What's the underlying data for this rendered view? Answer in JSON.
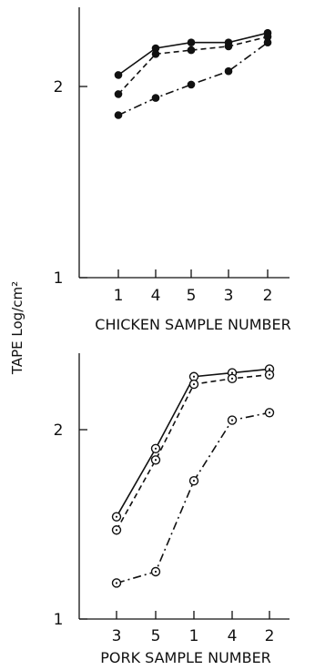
{
  "chart_data": [
    {
      "type": "line",
      "xlabel": "CHICKEN SAMPLE NUMBER",
      "categories": [
        "1",
        "4",
        "5",
        "3",
        "2"
      ],
      "ylim": [
        1,
        2.4
      ],
      "yticks": [
        "1",
        "2"
      ],
      "marker": "filled-circle",
      "series": [
        {
          "style": "solid",
          "values": [
            2.06,
            2.2,
            2.23,
            2.23,
            2.28
          ]
        },
        {
          "style": "dashed",
          "values": [
            1.96,
            2.17,
            2.19,
            2.21,
            2.26
          ]
        },
        {
          "style": "dash-dot",
          "values": [
            1.85,
            1.94,
            2.01,
            2.08,
            2.23
          ]
        }
      ]
    },
    {
      "type": "line",
      "xlabel": "PORK SAMPLE NUMBER",
      "categories": [
        "3",
        "5",
        "1",
        "4",
        "2"
      ],
      "ylim": [
        1,
        2.45
      ],
      "yticks": [
        "1",
        "2"
      ],
      "marker": "open-circle",
      "series": [
        {
          "style": "solid",
          "values": [
            1.54,
            1.9,
            2.28,
            2.3,
            2.32
          ]
        },
        {
          "style": "dashed",
          "values": [
            1.47,
            1.84,
            2.24,
            2.27,
            2.29
          ]
        },
        {
          "style": "dash-dot",
          "values": [
            1.19,
            1.25,
            1.73,
            2.05,
            2.09
          ]
        }
      ]
    }
  ],
  "shared_ylabel": "TAPE   Log/cm²"
}
